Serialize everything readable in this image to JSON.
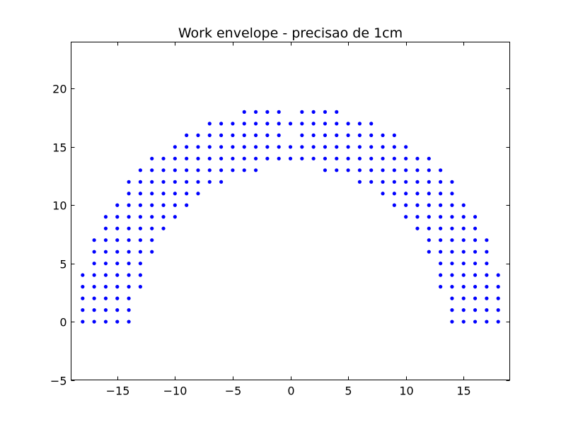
{
  "chart_data": {
    "type": "scatter",
    "title": "Work envelope - precisao de 1cm",
    "xlabel": "",
    "ylabel": "",
    "xlim": [
      -19,
      19
    ],
    "ylim": [
      -5,
      24
    ],
    "xticks": [
      -15,
      -10,
      -5,
      0,
      5,
      10,
      15
    ],
    "yticks": [
      -5,
      0,
      5,
      10,
      15,
      20
    ],
    "xtick_labels": [
      "−15",
      "−10",
      "−5",
      "0",
      "5",
      "10",
      "15"
    ],
    "ytick_labels": [
      "−5",
      "0",
      "5",
      "10",
      "15",
      "20"
    ],
    "grid": false,
    "marker_color": "#0000ff",
    "series": [
      {
        "points": [
          [
            -18,
            0
          ],
          [
            -18,
            1
          ],
          [
            -18,
            2
          ],
          [
            -18,
            3
          ],
          [
            -18,
            4
          ],
          [
            -17,
            0
          ],
          [
            -17,
            1
          ],
          [
            -17,
            2
          ],
          [
            -17,
            3
          ],
          [
            -17,
            4
          ],
          [
            -17,
            5
          ],
          [
            -17,
            6
          ],
          [
            -17,
            7
          ],
          [
            -16,
            0
          ],
          [
            -16,
            1
          ],
          [
            -16,
            2
          ],
          [
            -16,
            3
          ],
          [
            -16,
            4
          ],
          [
            -16,
            5
          ],
          [
            -16,
            6
          ],
          [
            -16,
            7
          ],
          [
            -16,
            8
          ],
          [
            -16,
            9
          ],
          [
            -15,
            0
          ],
          [
            -15,
            1
          ],
          [
            -15,
            2
          ],
          [
            -15,
            3
          ],
          [
            -15,
            4
          ],
          [
            -15,
            5
          ],
          [
            -15,
            6
          ],
          [
            -15,
            7
          ],
          [
            -15,
            8
          ],
          [
            -15,
            9
          ],
          [
            -15,
            10
          ],
          [
            -14,
            0
          ],
          [
            -14,
            1
          ],
          [
            -14,
            2
          ],
          [
            -14,
            3
          ],
          [
            -14,
            4
          ],
          [
            -14,
            5
          ],
          [
            -14,
            6
          ],
          [
            -14,
            7
          ],
          [
            -14,
            8
          ],
          [
            -14,
            9
          ],
          [
            -14,
            10
          ],
          [
            -14,
            11
          ],
          [
            -14,
            12
          ],
          [
            -13,
            3
          ],
          [
            -13,
            4
          ],
          [
            -13,
            5
          ],
          [
            -13,
            6
          ],
          [
            -13,
            7
          ],
          [
            -13,
            8
          ],
          [
            -13,
            9
          ],
          [
            -13,
            10
          ],
          [
            -13,
            11
          ],
          [
            -13,
            12
          ],
          [
            -13,
            13
          ],
          [
            -12,
            6
          ],
          [
            -12,
            7
          ],
          [
            -12,
            8
          ],
          [
            -12,
            9
          ],
          [
            -12,
            10
          ],
          [
            -12,
            11
          ],
          [
            -12,
            12
          ],
          [
            -12,
            13
          ],
          [
            -12,
            14
          ],
          [
            -11,
            8
          ],
          [
            -11,
            9
          ],
          [
            -11,
            10
          ],
          [
            -11,
            11
          ],
          [
            -11,
            12
          ],
          [
            -11,
            13
          ],
          [
            -11,
            14
          ],
          [
            -10,
            9
          ],
          [
            -10,
            10
          ],
          [
            -10,
            11
          ],
          [
            -10,
            12
          ],
          [
            -10,
            13
          ],
          [
            -10,
            14
          ],
          [
            -10,
            15
          ],
          [
            -9,
            10
          ],
          [
            -9,
            11
          ],
          [
            -9,
            12
          ],
          [
            -9,
            13
          ],
          [
            -9,
            14
          ],
          [
            -9,
            15
          ],
          [
            -9,
            16
          ],
          [
            -8,
            11
          ],
          [
            -8,
            12
          ],
          [
            -8,
            13
          ],
          [
            -8,
            14
          ],
          [
            -8,
            15
          ],
          [
            -8,
            16
          ],
          [
            -7,
            12
          ],
          [
            -7,
            13
          ],
          [
            -7,
            14
          ],
          [
            -7,
            15
          ],
          [
            -7,
            16
          ],
          [
            -7,
            17
          ],
          [
            -6,
            12
          ],
          [
            -6,
            13
          ],
          [
            -6,
            14
          ],
          [
            -6,
            15
          ],
          [
            -6,
            16
          ],
          [
            -6,
            17
          ],
          [
            -5,
            13
          ],
          [
            -5,
            14
          ],
          [
            -5,
            15
          ],
          [
            -5,
            16
          ],
          [
            -5,
            17
          ],
          [
            -4,
            13
          ],
          [
            -4,
            14
          ],
          [
            -4,
            15
          ],
          [
            -4,
            16
          ],
          [
            -4,
            17
          ],
          [
            -4,
            18
          ],
          [
            -3,
            13
          ],
          [
            -3,
            14
          ],
          [
            -3,
            15
          ],
          [
            -3,
            16
          ],
          [
            -3,
            17
          ],
          [
            -3,
            18
          ],
          [
            -2,
            14
          ],
          [
            -2,
            15
          ],
          [
            -2,
            16
          ],
          [
            -2,
            17
          ],
          [
            -2,
            18
          ],
          [
            -1,
            14
          ],
          [
            -1,
            15
          ],
          [
            -1,
            16
          ],
          [
            -1,
            17
          ],
          [
            -1,
            18
          ],
          [
            0,
            14
          ],
          [
            0,
            15
          ],
          [
            0,
            17
          ],
          [
            1,
            14
          ],
          [
            1,
            15
          ],
          [
            1,
            16
          ],
          [
            1,
            17
          ],
          [
            1,
            18
          ],
          [
            2,
            14
          ],
          [
            2,
            15
          ],
          [
            2,
            16
          ],
          [
            2,
            17
          ],
          [
            2,
            18
          ],
          [
            3,
            13
          ],
          [
            3,
            14
          ],
          [
            3,
            15
          ],
          [
            3,
            16
          ],
          [
            3,
            17
          ],
          [
            3,
            18
          ],
          [
            4,
            13
          ],
          [
            4,
            14
          ],
          [
            4,
            15
          ],
          [
            4,
            16
          ],
          [
            4,
            17
          ],
          [
            4,
            18
          ],
          [
            5,
            13
          ],
          [
            5,
            14
          ],
          [
            5,
            15
          ],
          [
            5,
            16
          ],
          [
            5,
            17
          ],
          [
            6,
            12
          ],
          [
            6,
            13
          ],
          [
            6,
            14
          ],
          [
            6,
            15
          ],
          [
            6,
            16
          ],
          [
            6,
            17
          ],
          [
            7,
            12
          ],
          [
            7,
            13
          ],
          [
            7,
            14
          ],
          [
            7,
            15
          ],
          [
            7,
            16
          ],
          [
            7,
            17
          ],
          [
            8,
            11
          ],
          [
            8,
            12
          ],
          [
            8,
            13
          ],
          [
            8,
            14
          ],
          [
            8,
            15
          ],
          [
            8,
            16
          ],
          [
            9,
            10
          ],
          [
            9,
            11
          ],
          [
            9,
            12
          ],
          [
            9,
            13
          ],
          [
            9,
            14
          ],
          [
            9,
            15
          ],
          [
            9,
            16
          ],
          [
            10,
            9
          ],
          [
            10,
            10
          ],
          [
            10,
            11
          ],
          [
            10,
            12
          ],
          [
            10,
            13
          ],
          [
            10,
            14
          ],
          [
            10,
            15
          ],
          [
            11,
            8
          ],
          [
            11,
            9
          ],
          [
            11,
            10
          ],
          [
            11,
            11
          ],
          [
            11,
            12
          ],
          [
            11,
            13
          ],
          [
            11,
            14
          ],
          [
            12,
            6
          ],
          [
            12,
            7
          ],
          [
            12,
            8
          ],
          [
            12,
            9
          ],
          [
            12,
            10
          ],
          [
            12,
            11
          ],
          [
            12,
            12
          ],
          [
            12,
            13
          ],
          [
            12,
            14
          ],
          [
            13,
            3
          ],
          [
            13,
            4
          ],
          [
            13,
            5
          ],
          [
            13,
            6
          ],
          [
            13,
            7
          ],
          [
            13,
            8
          ],
          [
            13,
            9
          ],
          [
            13,
            10
          ],
          [
            13,
            11
          ],
          [
            13,
            12
          ],
          [
            13,
            13
          ],
          [
            14,
            0
          ],
          [
            14,
            1
          ],
          [
            14,
            2
          ],
          [
            14,
            3
          ],
          [
            14,
            4
          ],
          [
            14,
            5
          ],
          [
            14,
            6
          ],
          [
            14,
            7
          ],
          [
            14,
            8
          ],
          [
            14,
            9
          ],
          [
            14,
            10
          ],
          [
            14,
            11
          ],
          [
            14,
            12
          ],
          [
            15,
            0
          ],
          [
            15,
            1
          ],
          [
            15,
            2
          ],
          [
            15,
            3
          ],
          [
            15,
            4
          ],
          [
            15,
            5
          ],
          [
            15,
            6
          ],
          [
            15,
            7
          ],
          [
            15,
            8
          ],
          [
            15,
            9
          ],
          [
            15,
            10
          ],
          [
            16,
            0
          ],
          [
            16,
            1
          ],
          [
            16,
            2
          ],
          [
            16,
            3
          ],
          [
            16,
            4
          ],
          [
            16,
            5
          ],
          [
            16,
            6
          ],
          [
            16,
            7
          ],
          [
            16,
            8
          ],
          [
            16,
            9
          ],
          [
            17,
            0
          ],
          [
            17,
            1
          ],
          [
            17,
            2
          ],
          [
            17,
            3
          ],
          [
            17,
            4
          ],
          [
            17,
            5
          ],
          [
            17,
            6
          ],
          [
            17,
            7
          ],
          [
            18,
            0
          ],
          [
            18,
            1
          ],
          [
            18,
            2
          ],
          [
            18,
            3
          ],
          [
            18,
            4
          ]
        ]
      }
    ]
  }
}
